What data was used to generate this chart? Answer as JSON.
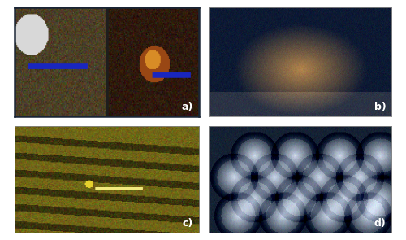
{
  "figure_width": 5.0,
  "figure_height": 2.95,
  "dpi": 100,
  "background_color": "#ffffff",
  "labels": {
    "a": "a)",
    "b": "b)",
    "c": "c)",
    "d": "d)"
  },
  "label_color": "#ffffff",
  "label_fontsize": 9
}
